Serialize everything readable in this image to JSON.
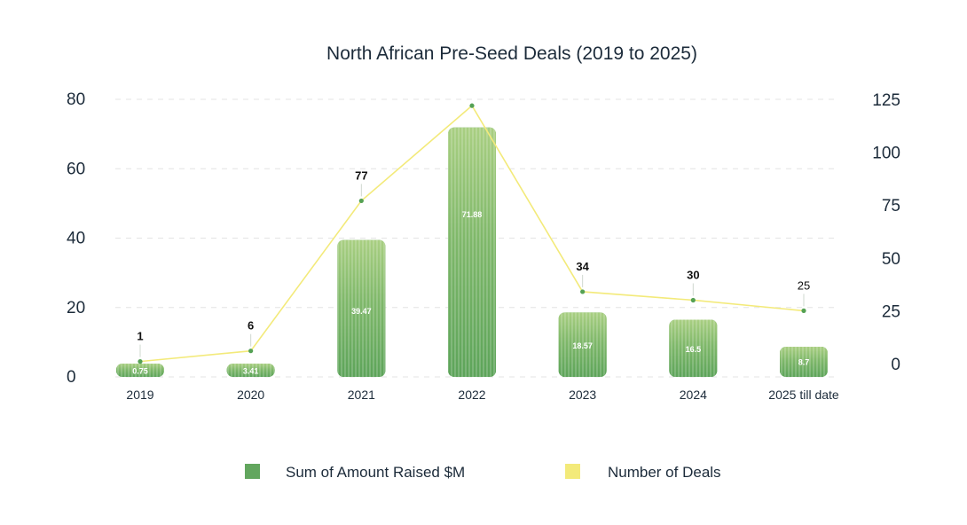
{
  "chart_data": {
    "type": "bar+line",
    "title": "North African Pre-Seed Deals (2019 to 2025)",
    "categories": [
      "2019",
      "2020",
      "2021",
      "2022",
      "2023",
      "2024",
      "2025 till date"
    ],
    "series": [
      {
        "name": "Sum of Amount Raised $M",
        "type": "bar",
        "axis": "left",
        "color": "#62a65e",
        "values": [
          0.75,
          3.41,
          39.47,
          71.88,
          18.57,
          16.5,
          8.7
        ],
        "labels": [
          "0.75",
          "3.41",
          "39.47",
          "71.88",
          "18.57",
          "16.5",
          "8.7"
        ]
      },
      {
        "name": "Number of Deals",
        "type": "line",
        "axis": "right",
        "color": "#f3ea7a",
        "values": [
          1,
          6,
          77,
          122,
          34,
          30,
          25
        ],
        "labels": [
          "1",
          "6",
          "77",
          "",
          "34",
          "30",
          "25"
        ]
      }
    ],
    "left_axis": {
      "ylim": [
        0,
        80
      ],
      "ticks": [
        "0",
        "20",
        "40",
        "60",
        "80"
      ]
    },
    "right_axis": {
      "ylim": [
        0,
        125
      ],
      "ticks": [
        "0",
        "25",
        "50",
        "75",
        "100",
        "125"
      ]
    },
    "legend_position": "bottom-center",
    "grid": true
  }
}
